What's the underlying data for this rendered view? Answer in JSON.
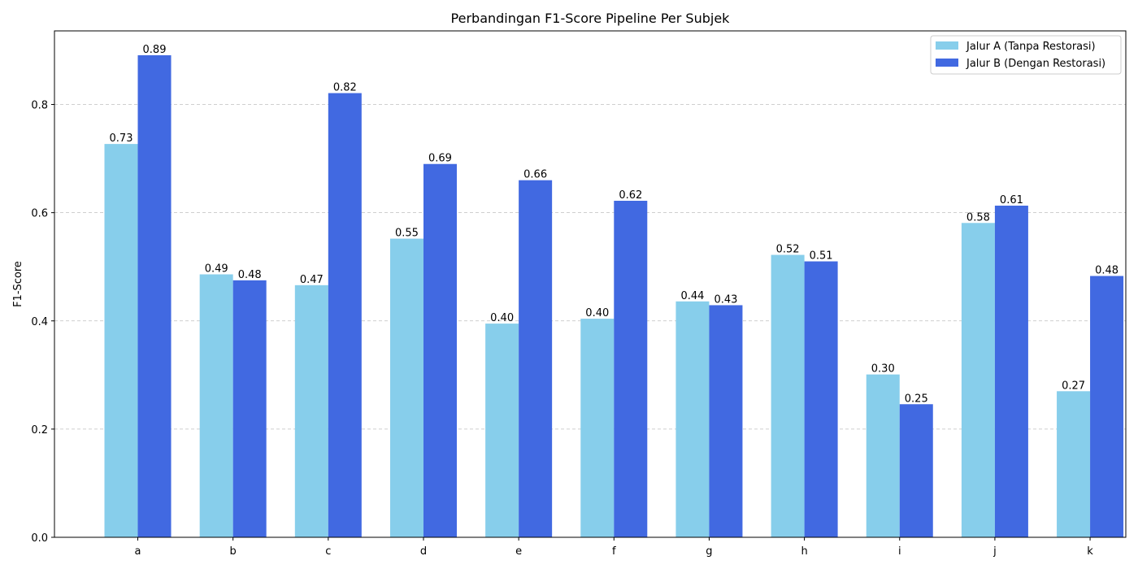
{
  "chart_data": {
    "type": "bar",
    "title": "Perbandingan F1-Score Pipeline Per Subjek",
    "xlabel": "",
    "ylabel": "F1-Score",
    "categories": [
      "a",
      "b",
      "c",
      "d",
      "e",
      "f",
      "g",
      "h",
      "i",
      "j",
      "k"
    ],
    "series": [
      {
        "name": "Jalur A (Tanpa Restorasi)",
        "color": "#87ceeb",
        "values": [
          0.727,
          0.486,
          0.466,
          0.552,
          0.395,
          0.404,
          0.436,
          0.522,
          0.301,
          0.581,
          0.27
        ],
        "labels": [
          "0.73",
          "0.49",
          "0.47",
          "0.55",
          "0.40",
          "0.40",
          "0.44",
          "0.52",
          "0.30",
          "0.58",
          "0.27"
        ]
      },
      {
        "name": "Jalur B (Dengan Restorasi)",
        "color": "#4169e1",
        "values": [
          0.891,
          0.475,
          0.821,
          0.69,
          0.66,
          0.622,
          0.429,
          0.51,
          0.246,
          0.613,
          0.483
        ],
        "labels": [
          "0.89",
          "0.48",
          "0.82",
          "0.69",
          "0.66",
          "0.62",
          "0.43",
          "0.51",
          "0.25",
          "0.61",
          "0.48"
        ]
      }
    ],
    "ylim": [
      0,
      0.936
    ],
    "yticks": [
      0.0,
      0.2,
      0.4,
      0.6,
      0.8
    ],
    "ytick_labels": [
      "0.0",
      "0.2",
      "0.4",
      "0.6",
      "0.8"
    ],
    "grid": "y-dashed",
    "legend_position": "top-right"
  }
}
